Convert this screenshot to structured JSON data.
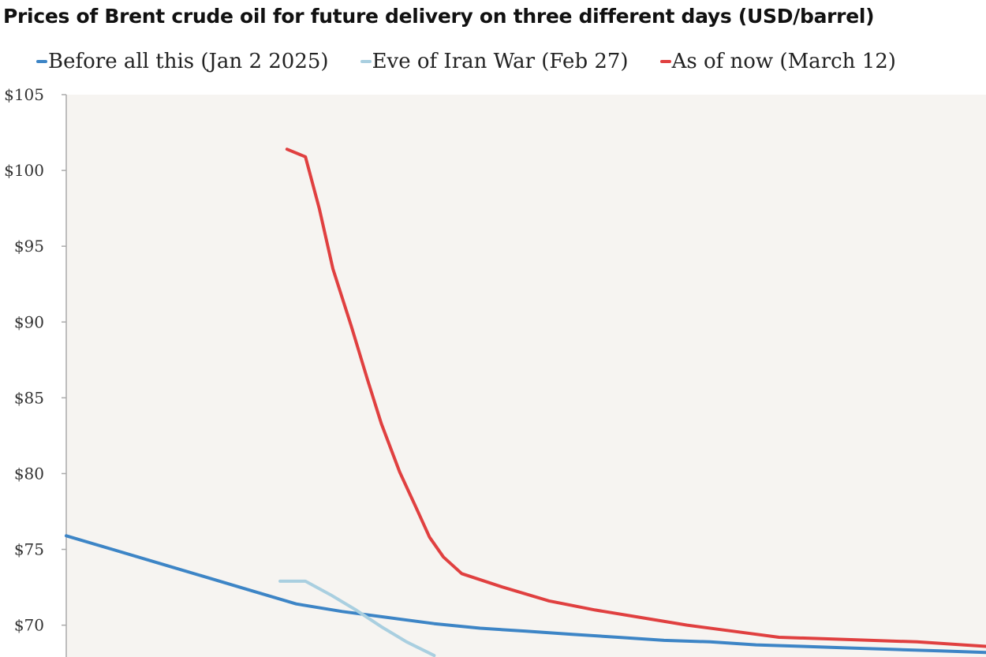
{
  "title": "Prices of Brent crude oil for future delivery on three different days (USD/barrel)",
  "colors": {
    "plot_bg": "#f6f4f1",
    "axis": "#aaaaaa"
  },
  "chart_data": {
    "type": "line",
    "title": "Prices of Brent crude oil for future delivery on three different days (USD/barrel)",
    "xlabel": "",
    "ylabel": "",
    "y_ticks": [
      "$105",
      "$100",
      "$95",
      "$90",
      "$85",
      "$80",
      "$75",
      "$70"
    ],
    "y_tick_values": [
      105,
      100,
      95,
      90,
      85,
      80,
      75,
      70
    ],
    "ylim": [
      67.9,
      105
    ],
    "xlim": [
      1,
      41
    ],
    "grid": false,
    "legend_position": "top",
    "series": [
      {
        "name": "Before all this (Jan 2 2025)",
        "color": "#3d85c6",
        "x": [
          1,
          3,
          5,
          7,
          9,
          11,
          13,
          15,
          17,
          19,
          21,
          23,
          25,
          27,
          29,
          31,
          33,
          35,
          37,
          39,
          41
        ],
        "values": [
          75.9,
          75.0,
          74.1,
          73.2,
          72.3,
          71.4,
          70.9,
          70.5,
          70.1,
          69.8,
          69.6,
          69.4,
          69.2,
          69.0,
          68.9,
          68.7,
          68.6,
          68.5,
          68.4,
          68.3,
          68.2
        ]
      },
      {
        "name": "Eve of Iran War (Feb 27)",
        "color": "#a9cfe0",
        "x": [
          10.3,
          11.4,
          12.5,
          13.6,
          14.7,
          15.8,
          17.0
        ],
        "values": [
          72.9,
          72.9,
          72.0,
          71.0,
          69.9,
          68.9,
          68.0
        ]
      },
      {
        "name": "As of now (March 12)",
        "color": "#e04040",
        "x": [
          10.6,
          11.4,
          12.0,
          12.6,
          13.4,
          14.1,
          14.7,
          15.5,
          16.2,
          16.8,
          17.4,
          18.2,
          20.0,
          22.0,
          24.0,
          26.0,
          28.0,
          30.0,
          32.0,
          34.0,
          36.0,
          38.0,
          40.0,
          41.0
        ],
        "values": [
          101.4,
          100.9,
          97.5,
          93.5,
          89.7,
          86.2,
          83.3,
          80.1,
          77.8,
          75.8,
          74.5,
          73.4,
          72.5,
          71.6,
          71.0,
          70.5,
          70.0,
          69.6,
          69.2,
          69.1,
          69.0,
          68.9,
          68.7,
          68.6
        ]
      }
    ]
  }
}
